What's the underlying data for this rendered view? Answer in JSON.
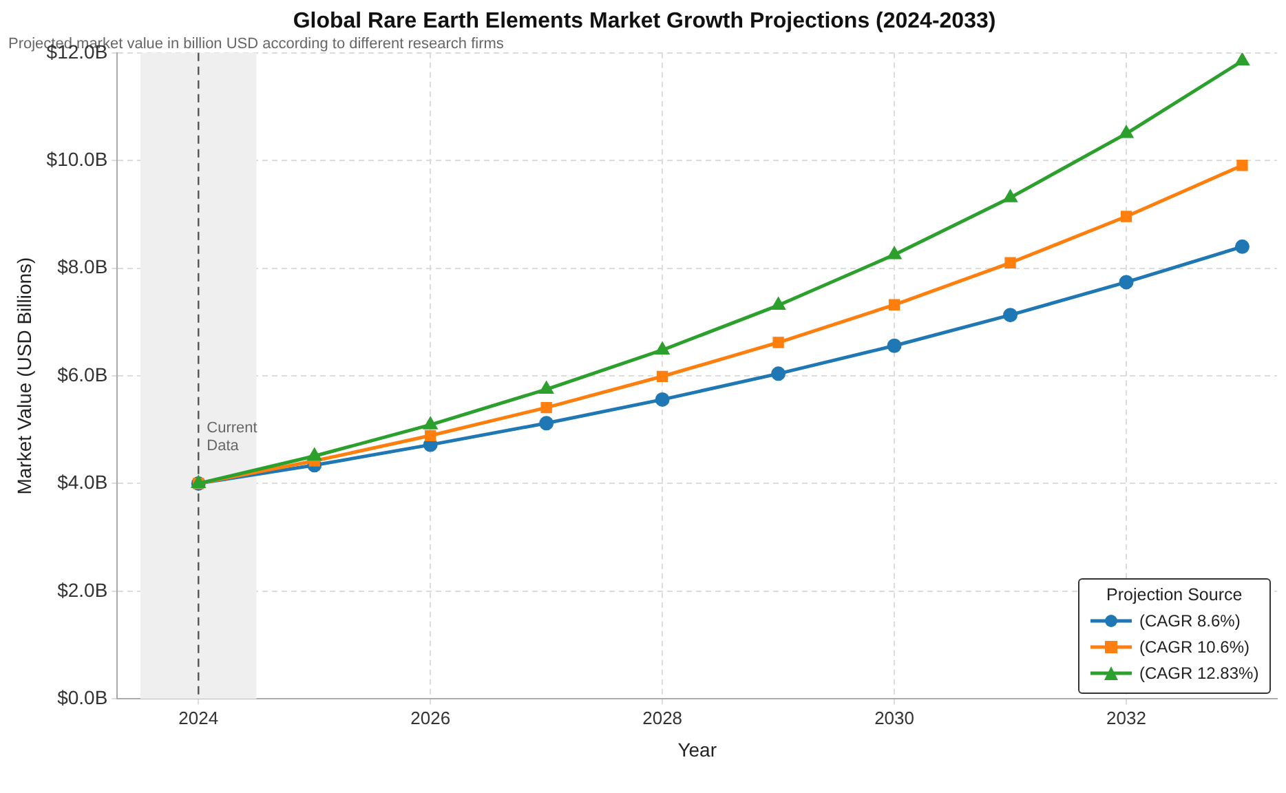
{
  "chart_data": {
    "type": "line",
    "title": "Global Rare Earth Elements Market Growth Projections (2024-2033)",
    "subtitle": "Projected market value in billion USD according to different research firms",
    "xlabel": "Year",
    "ylabel": "Market Value (USD Billions)",
    "legend_title": "Projection Source",
    "x": [
      2024,
      2025,
      2026,
      2027,
      2028,
      2029,
      2030,
      2031,
      2032,
      2033
    ],
    "series": [
      {
        "name": "(CAGR 8.6%)",
        "color": "#1f77b4",
        "marker": "circle",
        "values": [
          4.0,
          4.34,
          4.72,
          5.12,
          5.56,
          6.04,
          6.56,
          7.13,
          7.74,
          8.4
        ]
      },
      {
        "name": "(CAGR 10.6%)",
        "color": "#ff7f0e",
        "marker": "square",
        "values": [
          4.0,
          4.42,
          4.89,
          5.41,
          5.99,
          6.62,
          7.32,
          8.1,
          8.96,
          9.91
        ]
      },
      {
        "name": "(CAGR 12.83%)",
        "color": "#2ca02c",
        "marker": "triangle",
        "values": [
          4.0,
          4.51,
          5.09,
          5.75,
          6.48,
          7.31,
          8.25,
          9.31,
          10.5,
          11.85
        ]
      }
    ],
    "xlim": [
      2023.3,
      2033.3
    ],
    "xticks": [
      2024,
      2026,
      2028,
      2030,
      2032
    ],
    "ylim": [
      0,
      12
    ],
    "yticks": [
      {
        "value": 0,
        "label": "$0.0B"
      },
      {
        "value": 2,
        "label": "$2.0B"
      },
      {
        "value": 4,
        "label": "$4.0B"
      },
      {
        "value": 6,
        "label": "$6.0B"
      },
      {
        "value": 8,
        "label": "$8.0B"
      },
      {
        "value": 10,
        "label": "$10.0B"
      },
      {
        "value": 12,
        "label": "$12.0B"
      }
    ],
    "ref_lines": [
      {
        "axis": "x",
        "value": 2024,
        "color": "#555555",
        "line_style": "dashed"
      }
    ],
    "bands": [
      {
        "axis": "x",
        "from": 2023.5,
        "to": 2024.5,
        "color": "#efefef"
      }
    ],
    "annotations": [
      {
        "text": "Current Data",
        "x": 2024,
        "y": 4.55
      }
    ],
    "grid": true,
    "legend": "bottom right",
    "line_style": "solid"
  }
}
